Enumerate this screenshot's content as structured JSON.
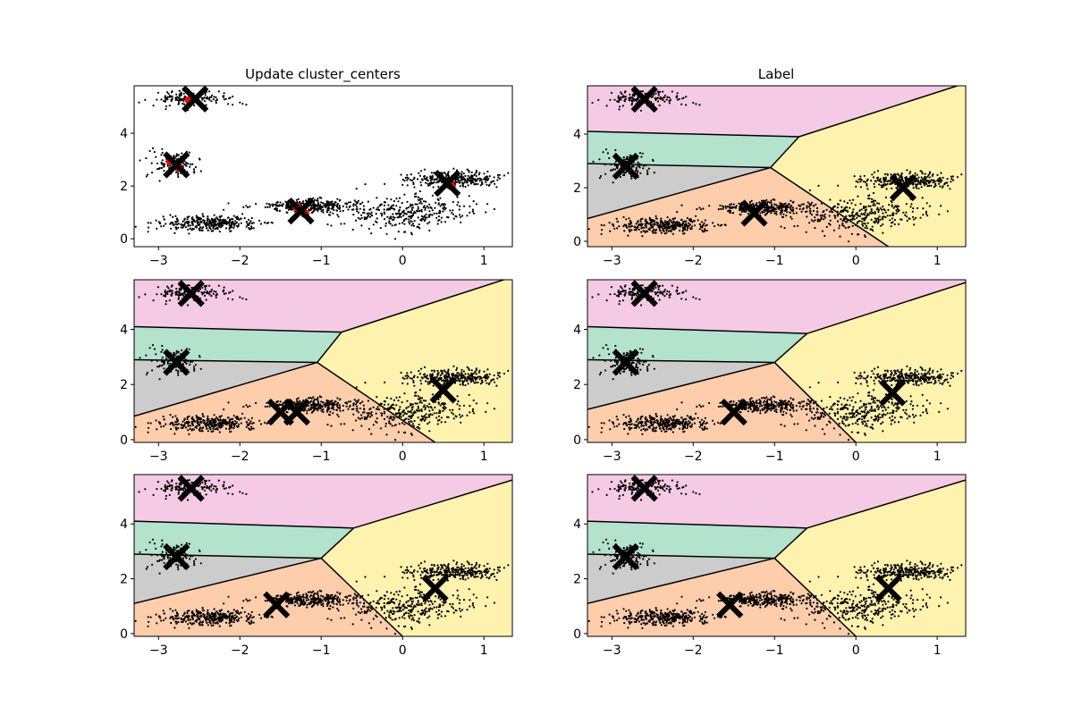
{
  "figure": {
    "titles": [
      "Update cluster_centers",
      "Label"
    ]
  },
  "colors": {
    "region_pink": "#F4CAE4",
    "region_green": "#B3E2CD",
    "region_gray": "#CCCCCC",
    "region_orange": "#FDCDAC",
    "region_yellow": "#FFF2AE",
    "points": "#000000",
    "centers": "#000000",
    "update_markers": "#FF0000"
  },
  "chart_data": [
    {
      "type": "scatter",
      "panel": "row1-left",
      "title": "Update cluster_centers",
      "xlim": [
        -3.3,
        1.35
      ],
      "ylim": [
        -0.3,
        5.8
      ],
      "xticks": [
        -3,
        -2,
        -1,
        0,
        1
      ],
      "yticks": [
        0,
        2,
        4
      ],
      "regions": false,
      "centers": [
        [
          -2.55,
          5.3
        ],
        [
          -2.78,
          2.8
        ],
        [
          -1.25,
          1.05
        ],
        [
          0.55,
          2.1
        ]
      ],
      "update_markers": [
        [
          -2.62,
          5.25
        ],
        [
          -2.85,
          2.95
        ],
        [
          -2.75,
          2.7
        ],
        [
          -1.3,
          1.2
        ],
        [
          -1.2,
          0.95
        ],
        [
          0.6,
          2.0
        ]
      ]
    },
    {
      "type": "scatter",
      "panel": "row1-right",
      "title": "Label",
      "xlim": [
        -3.3,
        1.35
      ],
      "ylim": [
        -0.2,
        5.8
      ],
      "xticks": [
        -3,
        -2,
        -1,
        0,
        1
      ],
      "yticks": [
        0,
        2,
        4
      ],
      "regions": true,
      "centers": [
        [
          -2.6,
          5.3
        ],
        [
          -2.83,
          2.8
        ],
        [
          -1.25,
          1.05
        ],
        [
          0.58,
          2.0
        ]
      ],
      "boundaries": {
        "pink_green": [
          [
            -3.3,
            4.1
          ],
          [
            -0.7,
            3.9
          ]
        ],
        "yellow_top": [
          [
            -0.7,
            3.9
          ],
          [
            1.35,
            5.9
          ]
        ],
        "green_gray": [
          [
            -3.3,
            2.9
          ],
          [
            -1.05,
            2.75
          ]
        ],
        "gray_orange": [
          [
            -3.3,
            0.85
          ],
          [
            -1.05,
            2.75
          ]
        ],
        "mid": [
          [
            -1.05,
            2.75
          ],
          [
            -0.7,
            3.9
          ]
        ],
        "orange_yellow": [
          [
            -1.05,
            2.75
          ],
          [
            0.45,
            -0.3
          ]
        ]
      }
    },
    {
      "type": "scatter",
      "panel": "row2-left",
      "xlim": [
        -3.3,
        1.35
      ],
      "ylim": [
        -0.1,
        5.8
      ],
      "xticks": [
        -3,
        -2,
        -1,
        0,
        1
      ],
      "yticks": [
        0,
        2,
        4
      ],
      "regions": true,
      "centers": [
        [
          -2.6,
          5.3
        ],
        [
          -2.78,
          2.8
        ],
        [
          -1.5,
          1.0
        ],
        [
          -1.3,
          1.0
        ],
        [
          0.5,
          1.8
        ]
      ],
      "boundaries": {
        "pink_green": [
          [
            -3.3,
            4.1
          ],
          [
            -0.75,
            3.9
          ]
        ],
        "yellow_top": [
          [
            -0.75,
            3.9
          ],
          [
            1.35,
            5.9
          ]
        ],
        "green_gray": [
          [
            -3.3,
            2.9
          ],
          [
            -1.05,
            2.8
          ]
        ],
        "gray_orange": [
          [
            -3.3,
            0.85
          ],
          [
            -1.05,
            2.8
          ]
        ],
        "mid": [
          [
            -1.05,
            2.8
          ],
          [
            -0.75,
            3.9
          ]
        ],
        "orange_yellow": [
          [
            -1.05,
            2.8
          ],
          [
            0.4,
            -0.1
          ]
        ]
      }
    },
    {
      "type": "scatter",
      "panel": "row2-right",
      "xlim": [
        -3.3,
        1.35
      ],
      "ylim": [
        -0.1,
        5.8
      ],
      "xticks": [
        -3,
        -2,
        -1,
        0,
        1
      ],
      "yticks": [
        0,
        2,
        4
      ],
      "regions": true,
      "centers": [
        [
          -2.6,
          5.3
        ],
        [
          -2.83,
          2.8
        ],
        [
          -1.5,
          1.0
        ],
        [
          0.45,
          1.7
        ]
      ],
      "boundaries": {
        "pink_green": [
          [
            -3.3,
            4.1
          ],
          [
            -0.6,
            3.85
          ]
        ],
        "yellow_top": [
          [
            -0.6,
            3.85
          ],
          [
            1.35,
            5.7
          ]
        ],
        "green_gray": [
          [
            -3.3,
            2.9
          ],
          [
            -1.0,
            2.8
          ]
        ],
        "gray_orange": [
          [
            -3.3,
            1.1
          ],
          [
            -1.0,
            2.8
          ]
        ],
        "mid": [
          [
            -1.0,
            2.8
          ],
          [
            -0.6,
            3.85
          ]
        ],
        "orange_yellow": [
          [
            -1.0,
            2.8
          ],
          [
            0.0,
            -0.1
          ]
        ]
      }
    },
    {
      "type": "scatter",
      "panel": "row3-left",
      "xlim": [
        -3.3,
        1.35
      ],
      "ylim": [
        -0.1,
        5.8
      ],
      "xticks": [
        -3,
        -2,
        -1,
        0,
        1
      ],
      "yticks": [
        0,
        2,
        4
      ],
      "regions": true,
      "centers": [
        [
          -2.6,
          5.3
        ],
        [
          -2.78,
          2.8
        ],
        [
          -1.55,
          1.05
        ],
        [
          0.4,
          1.65
        ]
      ],
      "boundaries": {
        "pink_green": [
          [
            -3.3,
            4.1
          ],
          [
            -0.6,
            3.85
          ]
        ],
        "yellow_top": [
          [
            -0.6,
            3.85
          ],
          [
            1.35,
            5.6
          ]
        ],
        "green_gray": [
          [
            -3.3,
            2.9
          ],
          [
            -1.0,
            2.75
          ]
        ],
        "gray_orange": [
          [
            -3.3,
            1.1
          ],
          [
            -1.0,
            2.75
          ]
        ],
        "mid": [
          [
            -1.0,
            2.75
          ],
          [
            -0.6,
            3.85
          ]
        ],
        "orange_yellow": [
          [
            -1.0,
            2.75
          ],
          [
            0.0,
            -0.1
          ]
        ]
      }
    },
    {
      "type": "scatter",
      "panel": "row3-right",
      "xlim": [
        -3.3,
        1.35
      ],
      "ylim": [
        -0.1,
        5.8
      ],
      "xticks": [
        -3,
        -2,
        -1,
        0,
        1
      ],
      "yticks": [
        0,
        2,
        4
      ],
      "regions": true,
      "centers": [
        [
          -2.6,
          5.3
        ],
        [
          -2.83,
          2.8
        ],
        [
          -1.55,
          1.05
        ],
        [
          0.4,
          1.65
        ]
      ],
      "boundaries": {
        "pink_green": [
          [
            -3.3,
            4.1
          ],
          [
            -0.6,
            3.85
          ]
        ],
        "yellow_top": [
          [
            -0.6,
            3.85
          ],
          [
            1.35,
            5.6
          ]
        ],
        "green_gray": [
          [
            -3.3,
            2.9
          ],
          [
            -1.0,
            2.75
          ]
        ],
        "gray_orange": [
          [
            -3.3,
            1.1
          ],
          [
            -1.0,
            2.75
          ]
        ],
        "mid": [
          [
            -1.0,
            2.75
          ],
          [
            -0.6,
            3.85
          ]
        ],
        "orange_yellow": [
          [
            -1.0,
            2.75
          ],
          [
            0.0,
            -0.1
          ]
        ]
      }
    }
  ]
}
